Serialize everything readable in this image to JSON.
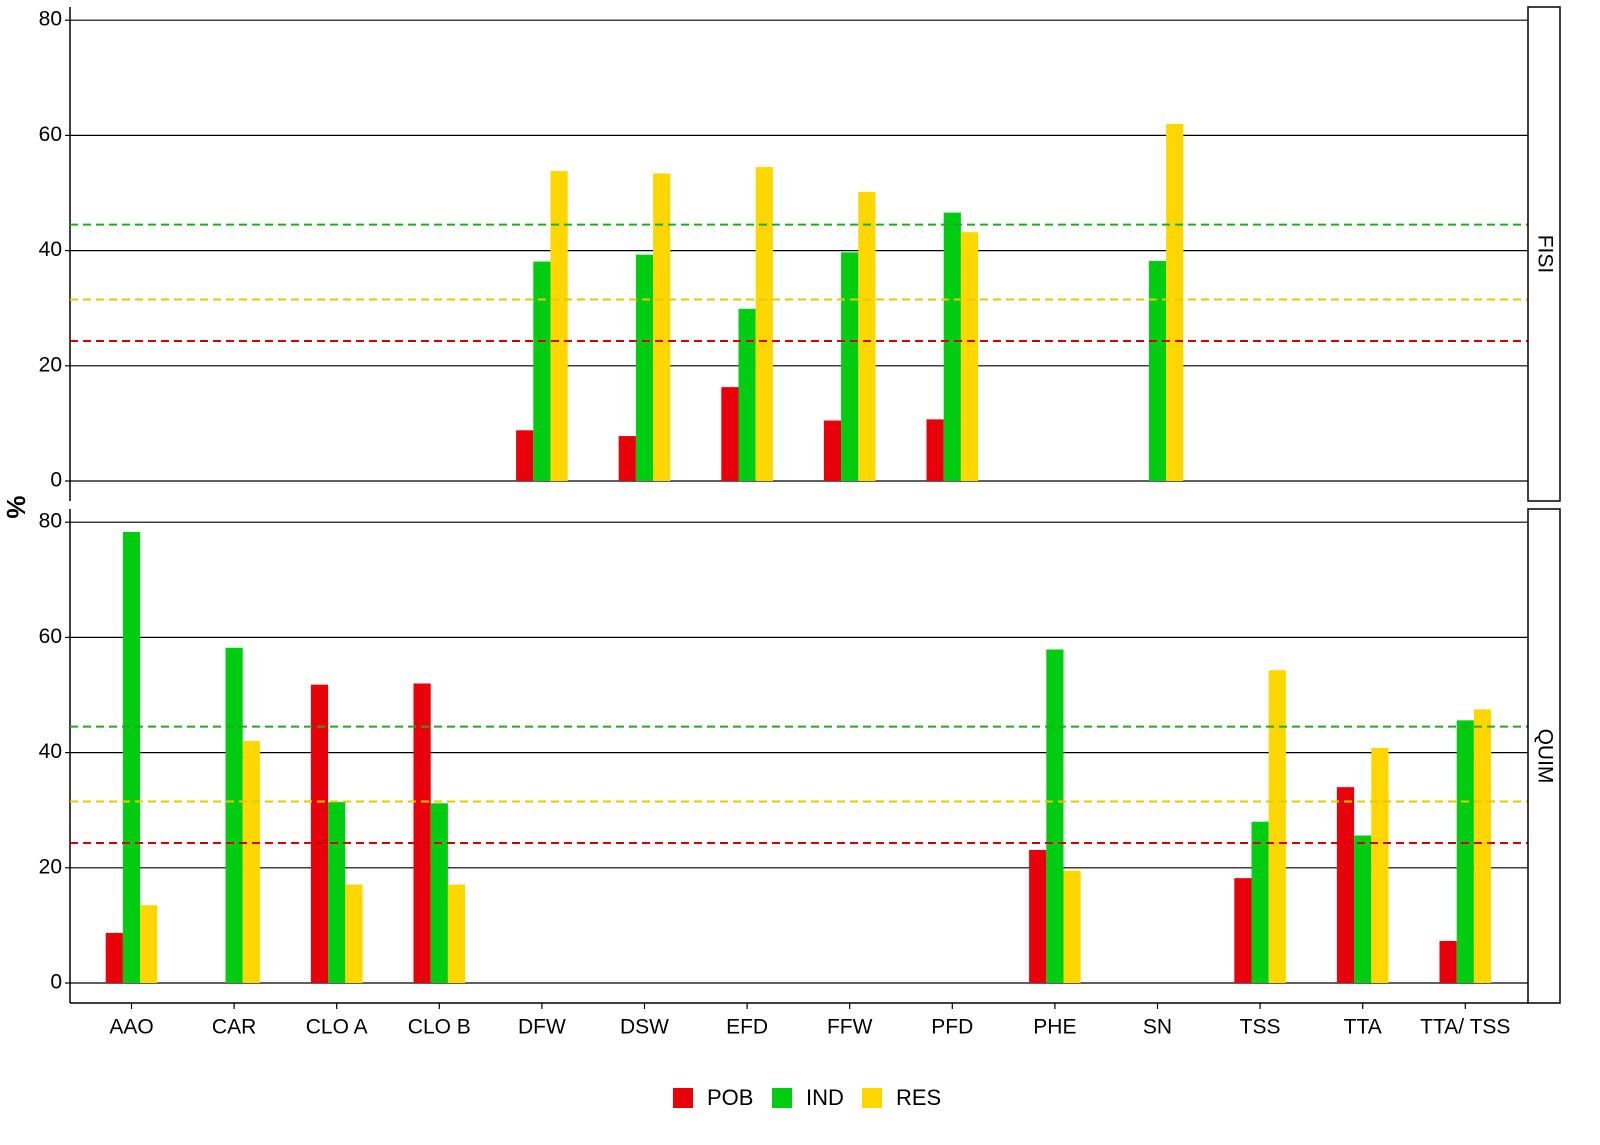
{
  "chart_data": {
    "type": "bar",
    "ylabel": "%",
    "xlabel": "",
    "categories": [
      "AAO",
      "CAR",
      "CLO A",
      "CLO B",
      "DFW",
      "DSW",
      "EFD",
      "FFW",
      "PFD",
      "PHE",
      "SN",
      "TSS",
      "TTA",
      "TTA/ TSS"
    ],
    "ylim": [
      0,
      80
    ],
    "yticks": [
      0,
      20,
      40,
      60,
      80
    ],
    "grid": "horizontal major lines",
    "legend_position": "bottom",
    "series_colors": {
      "POB": "#e8000b",
      "IND": "#00cc12",
      "RES": "#ffd700"
    },
    "reference_lines": [
      {
        "series": "IND",
        "value": 44.5,
        "color": "#22aa22",
        "style": "dashed"
      },
      {
        "series": "RES",
        "value": 31.5,
        "color": "#e6c800",
        "style": "dashed"
      },
      {
        "series": "POB",
        "value": 24.3,
        "color": "#d40000",
        "style": "dashed"
      }
    ],
    "panels": [
      {
        "strip": "FISI",
        "series": [
          {
            "name": "POB",
            "values": [
              null,
              null,
              null,
              null,
              8.8,
              7.8,
              16.3,
              10.5,
              10.7,
              null,
              null,
              null,
              null,
              null
            ]
          },
          {
            "name": "IND",
            "values": [
              null,
              null,
              null,
              null,
              38.1,
              39.3,
              29.9,
              39.7,
              46.6,
              null,
              38.2,
              null,
              null,
              null
            ]
          },
          {
            "name": "RES",
            "values": [
              null,
              null,
              null,
              null,
              53.8,
              53.4,
              54.5,
              50.2,
              43.2,
              null,
              62.0,
              null,
              null,
              null
            ]
          }
        ]
      },
      {
        "strip": "QUIM",
        "series": [
          {
            "name": "POB",
            "values": [
              8.7,
              null,
              51.8,
              52.0,
              null,
              null,
              null,
              null,
              null,
              23.1,
              null,
              18.2,
              34.0,
              7.3
            ]
          },
          {
            "name": "IND",
            "values": [
              78.3,
              58.2,
              31.4,
              31.2,
              null,
              null,
              null,
              null,
              null,
              57.9,
              null,
              28.0,
              25.6,
              45.6
            ]
          },
          {
            "name": "RES",
            "values": [
              13.5,
              42.0,
              17.1,
              17.1,
              null,
              null,
              null,
              null,
              null,
              19.5,
              null,
              54.3,
              40.8,
              47.5
            ]
          }
        ]
      }
    ]
  },
  "legend": {
    "items": [
      {
        "label": "POB",
        "color": "#e8000b"
      },
      {
        "label": "IND",
        "color": "#00cc12"
      },
      {
        "label": "RES",
        "color": "#ffd700"
      }
    ]
  }
}
